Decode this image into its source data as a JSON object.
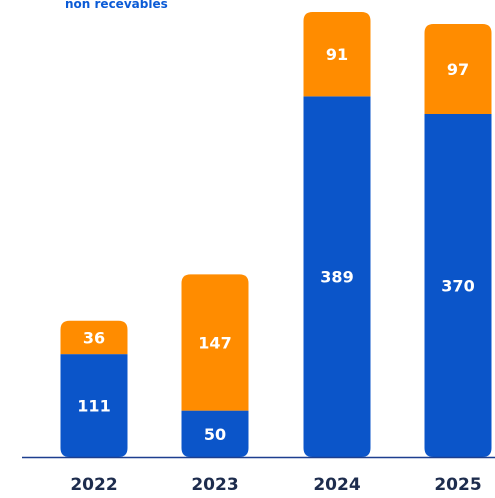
{
  "legend": {
    "partial_label": "non recevables"
  },
  "colors": {
    "bottom": "#0b55c9",
    "top": "#ff8c00",
    "axis": "#1d3f8f",
    "category_text": "#1d2c4d"
  },
  "chart_data": {
    "type": "bar",
    "stacked": true,
    "categories": [
      "2022",
      "2023",
      "2024",
      "2025"
    ],
    "series": [
      {
        "values": [
          111,
          50,
          389,
          370
        ]
      },
      {
        "name": "non recevables",
        "values": [
          36,
          147,
          91,
          97
        ]
      }
    ],
    "ylim": [
      0,
      480
    ],
    "grid": false,
    "legend_position": "top-left (partially visible)"
  }
}
